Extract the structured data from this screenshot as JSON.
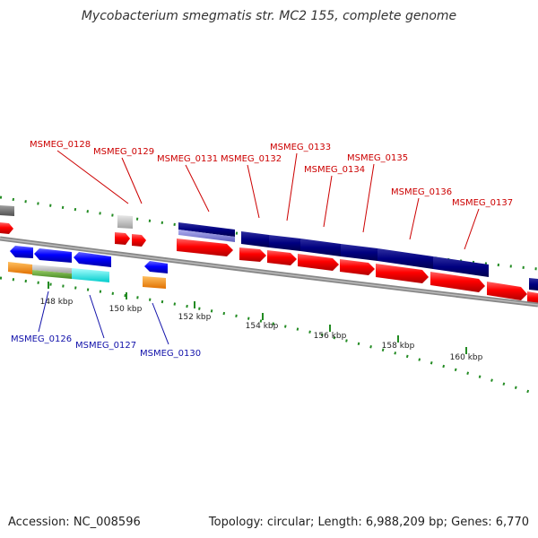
{
  "title": "Mycobacterium smegmatis str. MC2 155, complete genome",
  "footer": {
    "accession": "Accession: NC_008596",
    "summary": "Topology: circular; Length: 6,988,209 bp; Genes: 6,770"
  },
  "scale_labels": [
    "148 kbp",
    "150 kbp",
    "152 kbp",
    "154 kbp",
    "156 kbp",
    "158 kbp",
    "160 kbp"
  ],
  "colors": {
    "forward_cds": "#ff0000",
    "reverse_cds": "#0000ff",
    "dark_feature": "#000080",
    "light_feature": "#8080d0",
    "rna_grey": "#c0c0c0",
    "orange_feature": "#ff9900",
    "green_feature": "#66aa33",
    "cyan_feature": "#00ffff",
    "backbone": "#808080",
    "tick_green": "#228b22",
    "top_label": "#cc0000",
    "bottom_label": "#1111aa"
  },
  "labels_top": [
    "MSMEG_0128",
    "MSMEG_0129",
    "MSMEG_0131",
    "MSMEG_0132",
    "MSMEG_0133",
    "MSMEG_0134",
    "MSMEG_0135",
    "MSMEG_0136",
    "MSMEG_0137"
  ],
  "labels_bottom": [
    "MSMEG_0126",
    "MSMEG_0127",
    "MSMEG_0130"
  ]
}
